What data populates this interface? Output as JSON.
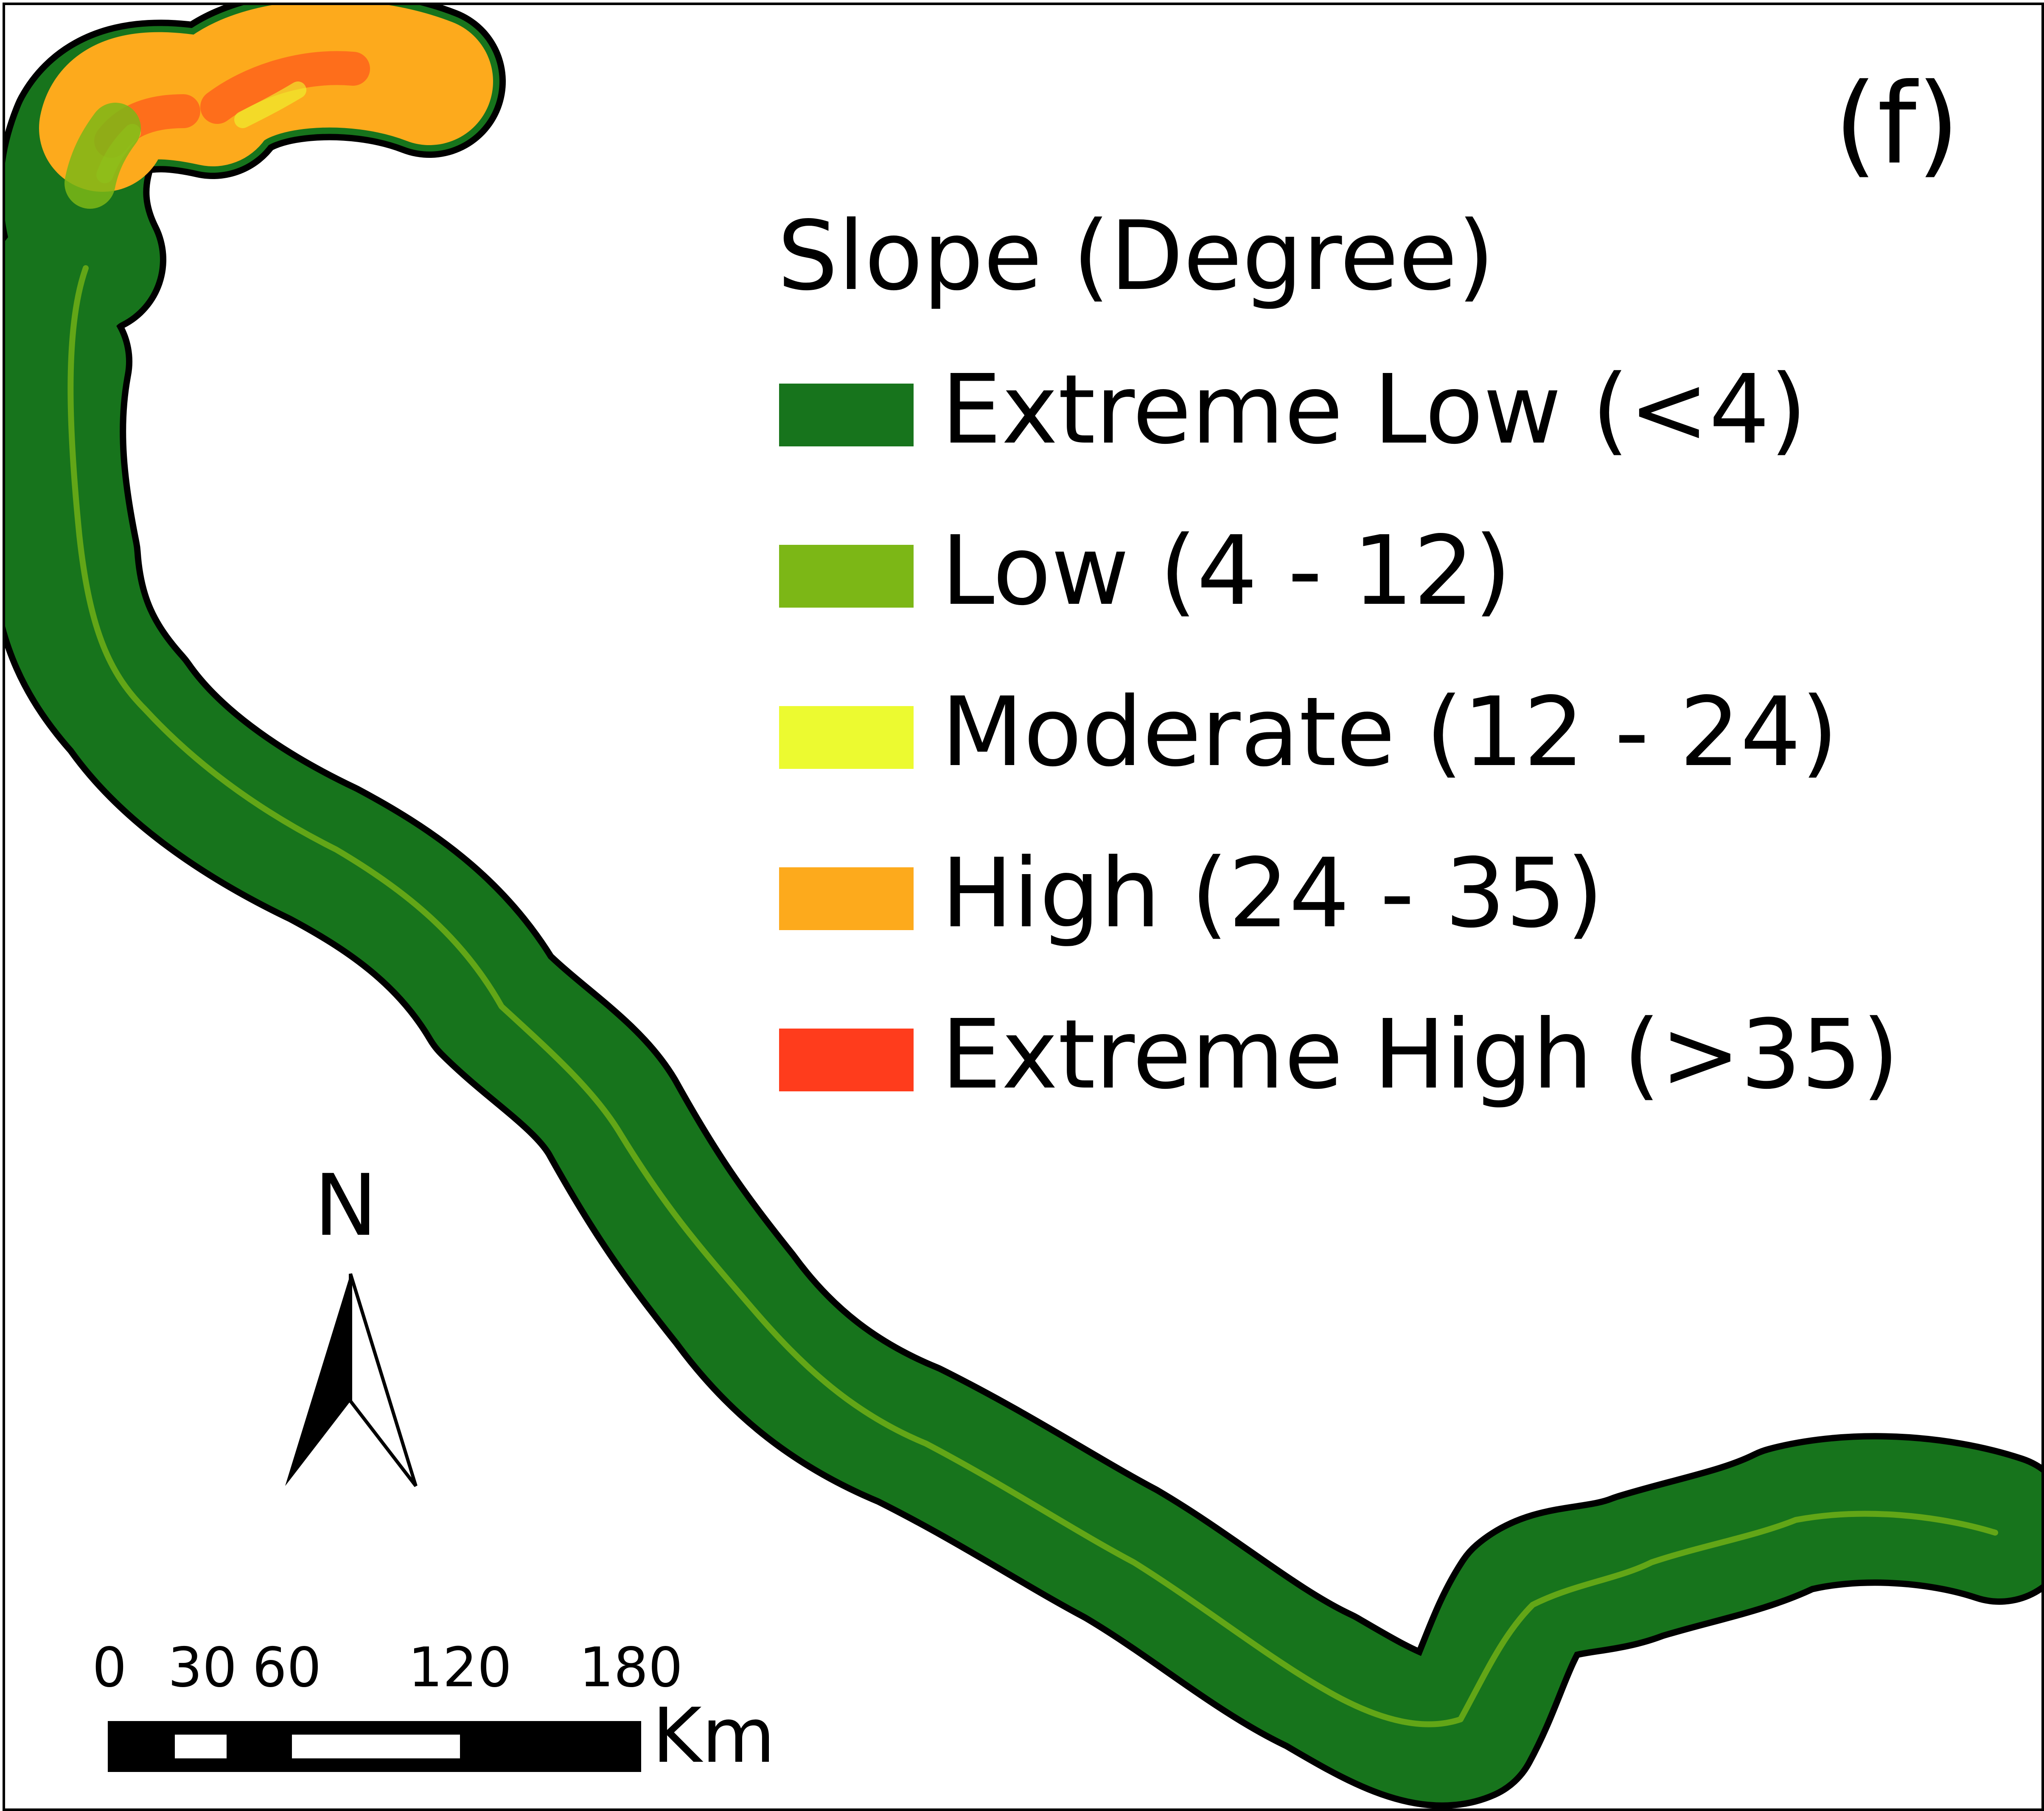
{
  "panel_label": "(f)",
  "legend": {
    "title": "Slope (Degree)",
    "classes": [
      {
        "label": "Extreme Low (<4)",
        "color": "#17741c"
      },
      {
        "label": "Low (4 - 12)",
        "color": "#7cb716"
      },
      {
        "label": "Moderate (12 - 24)",
        "color": "#ecfa30"
      },
      {
        "label": "High (24 - 35)",
        "color": "#fdaa1c"
      },
      {
        "label": "Extreme High (>35)",
        "color": "#ff3c1c"
      }
    ]
  },
  "north_arrow": {
    "label": "N",
    "icon": "north-arrow-icon"
  },
  "scale_bar": {
    "ticks": [
      "0",
      "30",
      "60",
      "120",
      "180"
    ],
    "unit": "Km"
  },
  "colors": {
    "outline": "#000000",
    "background": "#ffffff"
  }
}
